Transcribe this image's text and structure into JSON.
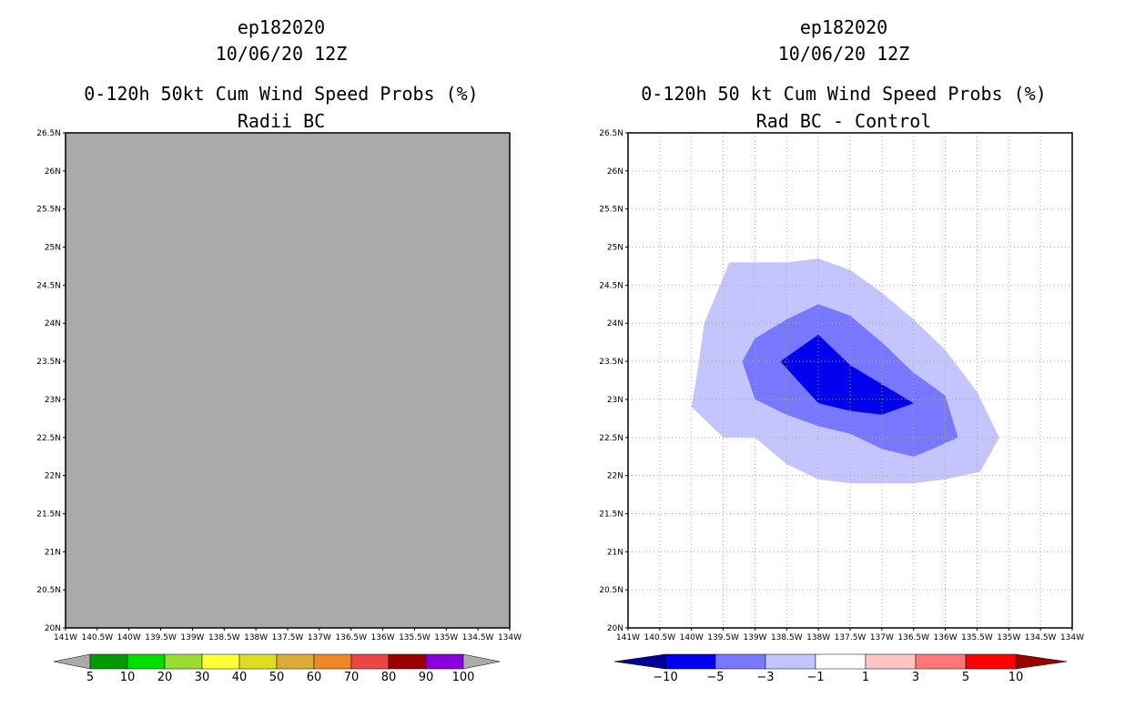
{
  "chart_data": [
    {
      "type": "heatmap",
      "storm_id": "ep182020",
      "date": "10/06/20 12Z",
      "title": "0-120h 50kt Cum Wind Speed Probs (%)",
      "subtitle": "Radii BC",
      "xlim": [
        -141,
        -134
      ],
      "ylim": [
        20,
        26.5
      ],
      "grid": false,
      "x_ticks": [
        "141W",
        "140.5W",
        "140W",
        "139.5W",
        "139W",
        "138.5W",
        "138W",
        "137.5W",
        "137W",
        "136.5W",
        "136W",
        "135.5W",
        "135W",
        "134.5W",
        "134W"
      ],
      "y_ticks": [
        "20N",
        "20.5N",
        "21N",
        "21.5N",
        "22N",
        "22.5N",
        "23N",
        "23.5N",
        "24N",
        "24.5N",
        "25N",
        "25.5N",
        "26N",
        "26.5N"
      ],
      "field_color": "#aaaaaa",
      "field_note": "entire domain below lowest contour level",
      "colorbar": {
        "labels": [
          "5",
          "10",
          "20",
          "30",
          "40",
          "50",
          "60",
          "70",
          "80",
          "90",
          "100"
        ],
        "colors": [
          "#009900",
          "#00dd00",
          "#99dd33",
          "#ffff33",
          "#dddd22",
          "#ddaa33",
          "#ee8822",
          "#ee4444",
          "#990000",
          "#8800dd"
        ],
        "end_color": "#aaaaaa"
      }
    },
    {
      "type": "heatmap",
      "storm_id": "ep182020",
      "date": "10/06/20 12Z",
      "title": "0-120h 50 kt Cum Wind Speed Probs (%)",
      "subtitle": "Rad BC - Control",
      "xlim": [
        -141,
        -134
      ],
      "ylim": [
        20,
        26.5
      ],
      "grid": true,
      "x_ticks": [
        "141W",
        "140.5W",
        "140W",
        "139.5W",
        "139W",
        "138.5W",
        "138W",
        "137.5W",
        "137W",
        "136.5W",
        "136W",
        "135.5W",
        "135W",
        "134.5W",
        "134W"
      ],
      "y_ticks": [
        "20N",
        "20.5N",
        "21N",
        "21.5N",
        "22N",
        "22.5N",
        "23N",
        "23.5N",
        "24N",
        "24.5N",
        "25N",
        "25.5N",
        "26N",
        "26.5N"
      ],
      "contours": [
        {
          "level": "-3 to -1",
          "color": "#c4c4ff",
          "points": [
            [
              -139.6,
              24.4
            ],
            [
              -139.4,
              24.8
            ],
            [
              -138.9,
              24.8
            ],
            [
              -138.5,
              24.8
            ],
            [
              -138.0,
              24.85
            ],
            [
              -137.5,
              24.7
            ],
            [
              -137.0,
              24.4
            ],
            [
              -136.5,
              24.05
            ],
            [
              -136.0,
              23.65
            ],
            [
              -135.5,
              23.1
            ],
            [
              -135.15,
              22.5
            ],
            [
              -135.45,
              22.05
            ],
            [
              -136.0,
              21.95
            ],
            [
              -136.5,
              21.9
            ],
            [
              -137.0,
              21.9
            ],
            [
              -137.5,
              21.9
            ],
            [
              -138.0,
              21.95
            ],
            [
              -138.5,
              22.15
            ],
            [
              -139.0,
              22.5
            ],
            [
              -139.5,
              22.5
            ],
            [
              -140.0,
              22.9
            ],
            [
              -139.9,
              23.4
            ],
            [
              -139.8,
              24.0
            ]
          ]
        },
        {
          "level": "-5 to -3",
          "color": "#7777ff",
          "points": [
            [
              -139.0,
              23.8
            ],
            [
              -138.5,
              24.05
            ],
            [
              -138.0,
              24.25
            ],
            [
              -137.5,
              24.1
            ],
            [
              -137.0,
              23.75
            ],
            [
              -136.5,
              23.35
            ],
            [
              -136.0,
              23.05
            ],
            [
              -135.8,
              22.5
            ],
            [
              -136.2,
              22.35
            ],
            [
              -136.5,
              22.25
            ],
            [
              -137.0,
              22.35
            ],
            [
              -137.5,
              22.55
            ],
            [
              -138.0,
              22.65
            ],
            [
              -138.5,
              22.8
            ],
            [
              -139.0,
              23.0
            ],
            [
              -139.2,
              23.5
            ]
          ]
        },
        {
          "level": "-10 to -5",
          "color": "#0000ee",
          "points": [
            [
              -138.6,
              23.5
            ],
            [
              -138.0,
              23.85
            ],
            [
              -137.5,
              23.45
            ],
            [
              -137.0,
              23.2
            ],
            [
              -136.5,
              22.95
            ],
            [
              -137.0,
              22.8
            ],
            [
              -137.5,
              22.85
            ],
            [
              -138.0,
              22.95
            ]
          ]
        }
      ],
      "colorbar": {
        "labels": [
          "-10",
          "-5",
          "-3",
          "-1",
          "1",
          "3",
          "5",
          "10"
        ],
        "colors": [
          "#0000ee",
          "#7777ff",
          "#c4c4ff",
          "#ffffff",
          "#ffc4c4",
          "#ff7777",
          "#ff0000"
        ],
        "low_end_color": "#000099",
        "high_end_color": "#990000"
      }
    }
  ]
}
